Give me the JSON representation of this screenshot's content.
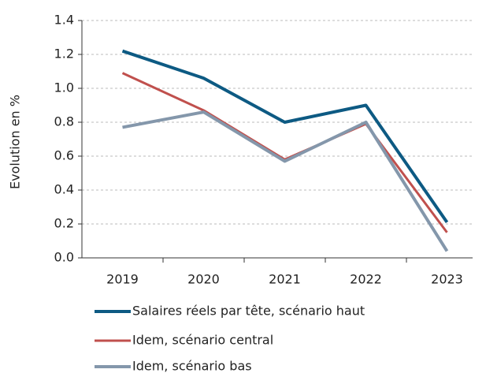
{
  "chart_data": {
    "type": "line",
    "y_label": "Evolution en %",
    "categories": [
      "2019",
      "2020",
      "2021",
      "2022",
      "2023"
    ],
    "series": [
      {
        "name": "Salaires réels par tête, scénario haut",
        "color": "#0d5a83",
        "values": [
          1.22,
          1.06,
          0.8,
          0.9,
          0.21
        ]
      },
      {
        "name": "Idem, scénario central",
        "color": "#c0504d",
        "values": [
          1.09,
          0.87,
          0.58,
          0.79,
          0.15
        ]
      },
      {
        "name": "Idem, scénario bas",
        "color": "#8497ab",
        "values": [
          0.77,
          0.86,
          0.57,
          0.8,
          0.04
        ]
      }
    ],
    "ylim": [
      0,
      1.4
    ],
    "yticks": [
      {
        "value": 0,
        "label": "0.0"
      },
      0.2,
      0.4,
      0.6,
      0.8,
      {
        "value": 1,
        "label": "1.0"
      },
      1.2,
      1.4
    ],
    "grid": true,
    "legend": "bottom"
  }
}
